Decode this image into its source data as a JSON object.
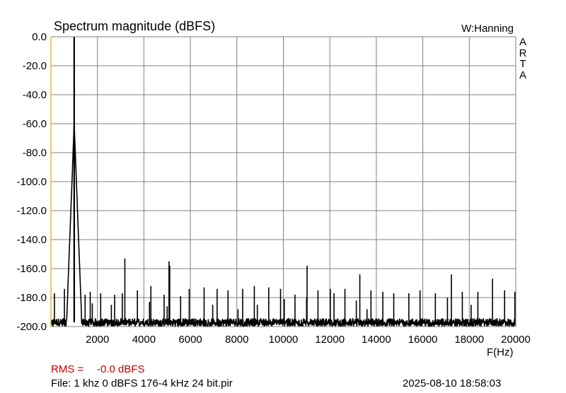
{
  "header": {
    "title": "Spectrum magnitude (dBFS)",
    "window": "W:Hanning",
    "brand_letters": [
      "A",
      "R",
      "T",
      "A"
    ]
  },
  "chart_data": {
    "type": "line",
    "title": "Spectrum magnitude (dBFS)",
    "xlabel": "F(Hz)",
    "ylabel": "",
    "xlim": [
      0,
      20000
    ],
    "ylim": [
      -200,
      0
    ],
    "grid": true,
    "x_ticks": [
      2000,
      4000,
      6000,
      8000,
      10000,
      12000,
      14000,
      16000,
      18000,
      20000
    ],
    "x_tick_labels": [
      "2000",
      "4000",
      "6000",
      "8000",
      "10000",
      "12000",
      "14000",
      "16000",
      "18000",
      "20000"
    ],
    "y_ticks": [
      0,
      -20,
      -40,
      -60,
      -80,
      -100,
      -120,
      -140,
      -160,
      -180,
      -200
    ],
    "y_tick_labels": [
      "0.0",
      "-20.0",
      "-40.0",
      "-60.0",
      "-80.0",
      "-100.0",
      "-120.0",
      "-140.0",
      "-160.0",
      "-180.0",
      "-200.0"
    ],
    "colors": {
      "trace": "#000000",
      "grid": "#808080",
      "left_axis": "#c8b400",
      "rms": "#c00000"
    },
    "series": [
      {
        "noise_floor_db": -197,
        "fundamental": {
          "freq": 1000,
          "level": 0
        },
        "peaks": [
          {
            "freq": 150,
            "level": -177
          },
          {
            "freq": 580,
            "level": -174
          },
          {
            "freq": 1010,
            "level": -105
          },
          {
            "freq": 1470,
            "level": -178
          },
          {
            "freq": 1690,
            "level": -176
          },
          {
            "freq": 1780,
            "level": -184
          },
          {
            "freq": 2140,
            "level": -177
          },
          {
            "freq": 2600,
            "level": -185
          },
          {
            "freq": 2740,
            "level": -178
          },
          {
            "freq": 3070,
            "level": -177
          },
          {
            "freq": 3180,
            "level": -153
          },
          {
            "freq": 3720,
            "level": -175
          },
          {
            "freq": 4240,
            "level": -183
          },
          {
            "freq": 4300,
            "level": -172
          },
          {
            "freq": 4870,
            "level": -178
          },
          {
            "freq": 5000,
            "level": -186
          },
          {
            "freq": 5080,
            "level": -155
          },
          {
            "freq": 5110,
            "level": -158
          },
          {
            "freq": 5580,
            "level": -179
          },
          {
            "freq": 5950,
            "level": -174
          },
          {
            "freq": 6590,
            "level": -173
          },
          {
            "freq": 6960,
            "level": -185
          },
          {
            "freq": 7150,
            "level": -174
          },
          {
            "freq": 7620,
            "level": -175
          },
          {
            "freq": 8050,
            "level": -188
          },
          {
            "freq": 8250,
            "level": -174
          },
          {
            "freq": 8750,
            "level": -172
          },
          {
            "freq": 8880,
            "level": -185
          },
          {
            "freq": 9370,
            "level": -173
          },
          {
            "freq": 9880,
            "level": -174
          },
          {
            "freq": 10040,
            "level": -181
          },
          {
            "freq": 10500,
            "level": -178
          },
          {
            "freq": 11000,
            "level": -180
          },
          {
            "freq": 11020,
            "level": -158
          },
          {
            "freq": 11490,
            "level": -175
          },
          {
            "freq": 12020,
            "level": -174
          },
          {
            "freq": 12180,
            "level": -177
          },
          {
            "freq": 12650,
            "level": -174
          },
          {
            "freq": 13140,
            "level": -182
          },
          {
            "freq": 13290,
            "level": -164
          },
          {
            "freq": 13600,
            "level": -188
          },
          {
            "freq": 13770,
            "level": -175
          },
          {
            "freq": 14280,
            "level": -176
          },
          {
            "freq": 14750,
            "level": -177
          },
          {
            "freq": 15400,
            "level": -177
          },
          {
            "freq": 15880,
            "level": -175
          },
          {
            "freq": 16540,
            "level": -177
          },
          {
            "freq": 17060,
            "level": -180
          },
          {
            "freq": 17230,
            "level": -164
          },
          {
            "freq": 17700,
            "level": -176
          },
          {
            "freq": 18080,
            "level": -185
          },
          {
            "freq": 18370,
            "level": -176
          },
          {
            "freq": 19000,
            "level": -167
          },
          {
            "freq": 19520,
            "level": -175
          },
          {
            "freq": 19960,
            "level": -176
          }
        ]
      }
    ]
  },
  "footer": {
    "rms_label": "RMS =",
    "rms_value": "-0.0 dBFS",
    "file": "File: 1 khz 0 dBFS 176-4 kHz 24 bit.pir",
    "timestamp": "2025-08-10   18:58:03"
  }
}
